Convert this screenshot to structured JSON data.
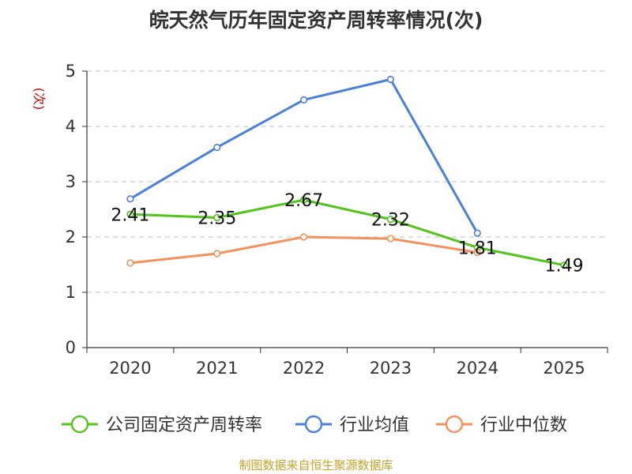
{
  "chart_data": {
    "type": "line",
    "title": "皖天然气历年固定资产周转率情况(次)",
    "ylabel": "(次)",
    "xlabel": "",
    "source": "制图数据来自恒生聚源数据库",
    "categories": [
      "2020",
      "2021",
      "2022",
      "2023",
      "2024",
      "2025"
    ],
    "ylim": [
      0,
      5
    ],
    "yticks": [
      0,
      1,
      2,
      3,
      4,
      5
    ],
    "grid": true,
    "legend_position": "bottom",
    "series": [
      {
        "name": "公司固定资产周转率",
        "color": "#52c41a",
        "values": [
          2.41,
          2.35,
          2.67,
          2.32,
          1.81,
          1.49
        ],
        "labels": [
          "2.41",
          "2.35",
          "2.67",
          "2.32",
          "1.81",
          "1.49"
        ]
      },
      {
        "name": "行业均值",
        "color": "#4a7fdc",
        "values": [
          2.69,
          3.62,
          4.48,
          4.85,
          2.07,
          null
        ]
      },
      {
        "name": "行业中位数",
        "color": "#f5915a",
        "values": [
          1.53,
          1.7,
          2.0,
          1.97,
          1.72,
          null
        ]
      }
    ]
  }
}
